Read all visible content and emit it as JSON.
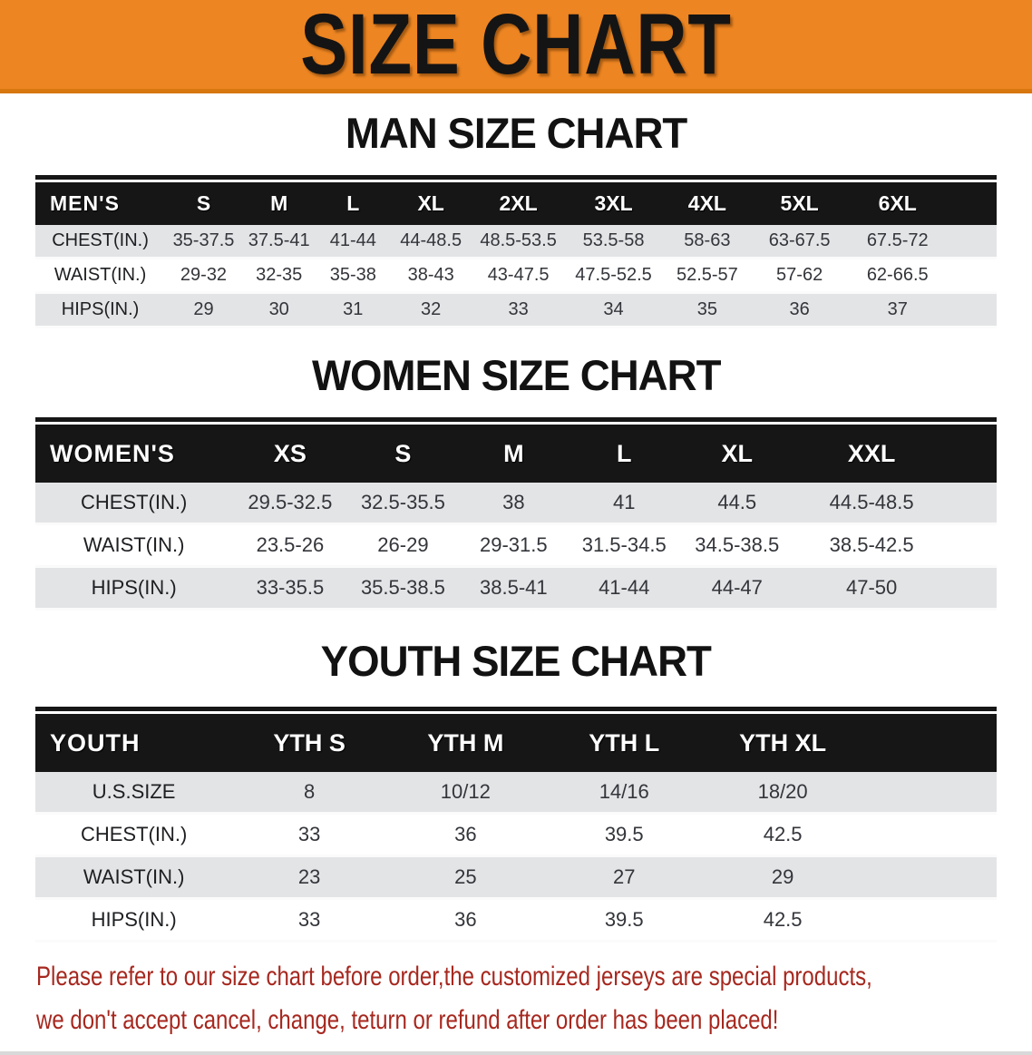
{
  "colors": {
    "banner_orange": "#ED8522",
    "banner_orange_dark": "#D8770E",
    "header_black": "#161616",
    "row_grey": "#E3E4E6",
    "disclaimer_red": "#A6281F"
  },
  "banner": {
    "title": "SIZE CHART"
  },
  "sections": [
    {
      "id": "men",
      "title": "MAN SIZE CHART",
      "table": {
        "header_label": "MEN'S",
        "sizes": [
          "S",
          "M",
          "L",
          "XL",
          "2XL",
          "3XL",
          "4XL",
          "5XL",
          "6XL"
        ],
        "rows": [
          {
            "label": "CHEST(IN.)",
            "values": [
              "35-37.5",
              "37.5-41",
              "41-44",
              "44-48.5",
              "48.5-53.5",
              "53.5-58",
              "58-63",
              "63-67.5",
              "67.5-72"
            ]
          },
          {
            "label": "WAIST(IN.)",
            "values": [
              "29-32",
              "32-35",
              "35-38",
              "38-43",
              "43-47.5",
              "47.5-52.5",
              "52.5-57",
              "57-62",
              "62-66.5"
            ]
          },
          {
            "label": "HIPS(IN.)",
            "values": [
              "29",
              "30",
              "31",
              "32",
              "33",
              "34",
              "35",
              "36",
              "37"
            ]
          }
        ]
      }
    },
    {
      "id": "women",
      "title": "WOMEN SIZE CHART",
      "table": {
        "header_label": "WOMEN'S",
        "sizes": [
          "XS",
          "S",
          "M",
          "L",
          "XL",
          "XXL"
        ],
        "rows": [
          {
            "label": "CHEST(IN.)",
            "values": [
              "29.5-32.5",
              "32.5-35.5",
              "38",
              "41",
              "44.5",
              "44.5-48.5"
            ]
          },
          {
            "label": "WAIST(IN.)",
            "values": [
              "23.5-26",
              "26-29",
              "29-31.5",
              "31.5-34.5",
              "34.5-38.5",
              "38.5-42.5"
            ]
          },
          {
            "label": "HIPS(IN.)",
            "values": [
              "33-35.5",
              "35.5-38.5",
              "38.5-41",
              "41-44",
              "44-47",
              "47-50"
            ]
          }
        ]
      }
    },
    {
      "id": "youth",
      "title": "YOUTH SIZE CHART",
      "table": {
        "header_label": "YOUTH",
        "sizes": [
          "YTH S",
          "YTH M",
          "YTH L",
          "YTH XL"
        ],
        "rows": [
          {
            "label": "U.S.SIZE",
            "values": [
              "8",
              "10/12",
              "14/16",
              "18/20"
            ]
          },
          {
            "label": "CHEST(IN.)",
            "values": [
              "33",
              "36",
              "39.5",
              "42.5"
            ]
          },
          {
            "label": "WAIST(IN.)",
            "values": [
              "23",
              "25",
              "27",
              "29"
            ]
          },
          {
            "label": "HIPS(IN.)",
            "values": [
              "33",
              "36",
              "39.5",
              "42.5"
            ]
          }
        ]
      }
    }
  ],
  "disclaimer": {
    "line1": "Please refer to our size chart before order,the customized jerseys are special products,",
    "line2": "we don't accept cancel, change, teturn or refund after order has been placed!"
  }
}
